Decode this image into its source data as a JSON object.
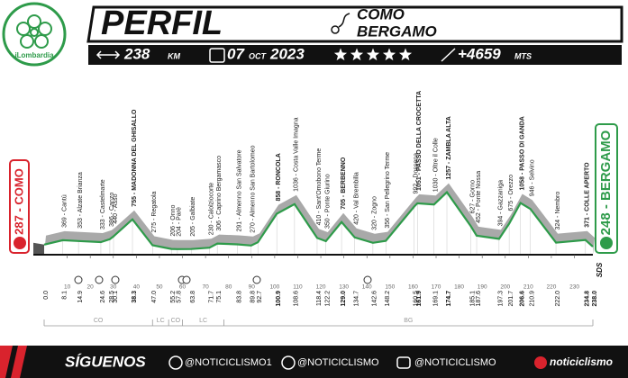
{
  "header": {
    "logo": "iLombardia",
    "title": "PERFIL",
    "from": "COMO",
    "to": "BERGAMO",
    "distance": 238,
    "distance_unit": "KM",
    "day": "07",
    "month": "OCT",
    "year": 2023,
    "rating": 5,
    "elevation": "+4659",
    "elevation_unit": "MTS"
  },
  "chart_data": {
    "type": "profile",
    "x": [
      {
        "value": 0,
        "label": "0.0"
      },
      8.1,
      14.9,
      24.6,
      28.5,
      30.1,
      38.3,
      {
        "value": 47,
        "label": "47.0"
      },
      55.2,
      57.8,
      63.8,
      71.7,
      75.1,
      83.8,
      89.8,
      92.7,
      100.9,
      108.6,
      118.4,
      122.2,
      {
        "value": 129,
        "label": "129.0"
      },
      134.7,
      142.6,
      148.2,
      160.5,
      161.9,
      169.1,
      174.7,
      185.1,
      187.6,
      197.3,
      201.7,
      206.6,
      210.9,
      {
        "value": 222,
        "label": "222.0"
      },
      234.8,
      {
        "value": 238,
        "label": "238.0"
      }
    ],
    "values": [
      287,
      369,
      353,
      333,
      386,
      440,
      755,
      275,
      206,
      204,
      205,
      230,
      306,
      291,
      270,
      330,
      858,
      1036,
      410,
      350,
      705,
      420,
      320,
      356,
      992,
      1051,
      1030,
      1257,
      627,
      452,
      394,
      675,
      1058,
      946,
      324,
      371,
      248
    ],
    "labels": [
      "287 - COMO",
      "369 - Cantù",
      "353 - Alzate Brianza",
      "333 - Castelmarte",
      "386 - Canzo",
      "440 - Asso",
      "755 - MADONNA DEL GHISALLO",
      "275 - Regatola",
      "206 - Onno",
      "204 - Parè",
      "205 - Galbiate",
      "230 - Calolziocorte",
      "306 - Caprino Bergamasco",
      "291 - Almenno San Salvatore",
      "270 - Almenno San Bartolomeo",
      null,
      "858 - RONCOLA",
      "1036 - Costa Valle Imagna",
      "410 - Sant'Omobono Terme",
      "350 - Ponte Giurino",
      "705 - BERBENNO",
      "420 - Val Brembilla",
      "320 - Zogno",
      "356 - San Pellegrino Terme",
      "992 - Dossena",
      "1051 - PASSO DELLA CROCETTA",
      "1030 - Oltre il Colle",
      "1257 - ZAMBLA ALTA",
      "627 - Gorno",
      "452 - Ponte Nossa",
      "394 - Gazzaniga",
      "675 - Orezzo",
      "1058 - PASSO DI GANDA",
      "946 - Selvino",
      "324 - Nembro",
      "371 - COLLE APERTO",
      "248 - BERGAMO"
    ],
    "highlight": [
      6,
      16,
      20,
      25,
      27,
      32,
      35,
      36
    ],
    "xlim": [
      0,
      238
    ],
    "ylim": [
      0,
      1400
    ],
    "xticks": [
      10,
      20,
      30,
      40,
      50,
      60,
      70,
      80,
      90,
      100,
      110,
      120,
      130,
      140,
      150,
      160,
      170,
      180,
      190,
      200,
      210,
      220,
      230
    ],
    "color": "#2e9b4a",
    "start_color": "#d9232d",
    "regions": {
      "names": [
        "CO",
        "LC",
        "CO",
        "LC",
        "BG"
      ],
      "bounds": [
        0,
        47,
        54,
        60,
        78,
        238
      ]
    },
    "note": "SDS"
  },
  "footer": {
    "follow": "SÍGUENOS",
    "social": [
      "@NOTICICLISMO1",
      "@NOTICICLISMO",
      "@NOTICICLISMO"
    ],
    "brand": "noticiclismo"
  }
}
